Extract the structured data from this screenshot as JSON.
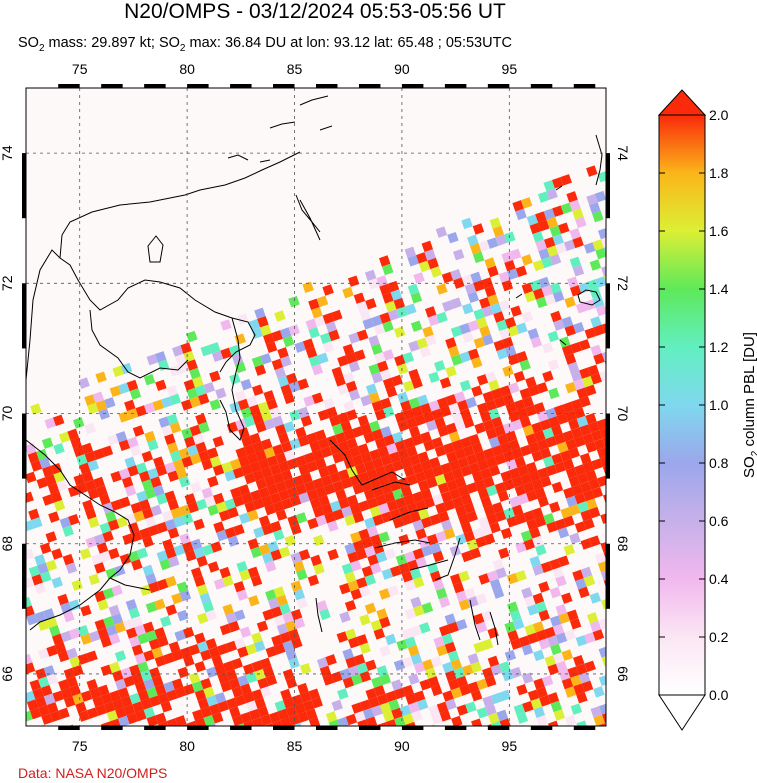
{
  "header": {
    "title": "N20/OMPS - 03/12/2024 05:53-05:56 UT",
    "subtitle_prefix": "SO",
    "subtitle_mass": " mass: 29.897 kt; SO",
    "subtitle_rest": " max: 36.84 DU at lon: 93.12 lat: 65.48 ; 05:53UTC",
    "subscript": "2"
  },
  "map": {
    "lon_ticks": [
      "75",
      "80",
      "85",
      "90",
      "95"
    ],
    "lat_ticks": [
      "74",
      "72",
      "70",
      "68",
      "66"
    ],
    "lon_range": [
      72.5,
      99.5
    ],
    "lat_range": [
      65.2,
      75.0
    ],
    "plume_color": "#fa2a0a",
    "background_color": "#fdf9f9"
  },
  "colorbar": {
    "label_prefix": "SO",
    "label_sub": "2",
    "label_rest": " column PBL [DU]",
    "ticks": [
      "2.0",
      "1.8",
      "1.6",
      "1.4",
      "1.2",
      "1.0",
      "0.8",
      "0.6",
      "0.4",
      "0.2",
      "0.0"
    ],
    "range": [
      0.0,
      2.0
    ]
  },
  "footer": {
    "credit": "Data: NASA N20/OMPS"
  }
}
